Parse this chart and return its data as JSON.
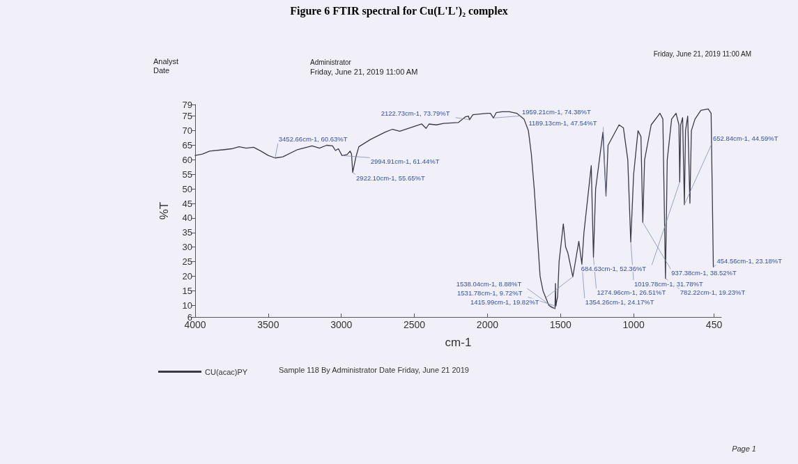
{
  "chart_data": {
    "type": "line",
    "title": "Figure 6 FTIR spectral for Cu(L'L')₂ complex",
    "xlabel": "cm-1",
    "ylabel": "%T",
    "xlim": [
      4000,
      400
    ],
    "xticks": [
      4000,
      3500,
      3000,
      2500,
      2000,
      1500,
      1000,
      450
    ],
    "ylim": [
      6,
      79
    ],
    "yticks": [
      6,
      10,
      15,
      20,
      25,
      30,
      35,
      40,
      45,
      50,
      55,
      60,
      65,
      70,
      75,
      79
    ],
    "grid": false,
    "legend": "bottom left",
    "marker": "none",
    "line_style": "solid",
    "series": [
      {
        "name": "CU(acac)PY",
        "color": "#3a3a44",
        "x": [
          4000,
          3950,
          3900,
          3800,
          3750,
          3700,
          3650,
          3600,
          3550,
          3500,
          3452.66,
          3400,
          3300,
          3200,
          3150,
          3100,
          3060,
          3040,
          3020,
          2994.91,
          2960,
          2940,
          2930,
          2922.1,
          2900,
          2880,
          2800,
          2700,
          2650,
          2600,
          2500,
          2450,
          2420,
          2400,
          2350,
          2300,
          2200,
          2150,
          2130,
          2122.73,
          2100,
          2000,
          1980,
          1959.21,
          1940,
          1900,
          1850,
          1800,
          1750,
          1720,
          1700,
          1680,
          1660,
          1640,
          1620,
          1580,
          1560,
          1545,
          1538.04,
          1535,
          1533,
          1531.78,
          1528,
          1520,
          1510,
          1481,
          1465,
          1450,
          1415.99,
          1375,
          1354.26,
          1340,
          1290,
          1274.96,
          1260,
          1210,
          1189.13,
          1175,
          1100,
          1070,
          1040,
          1019.78,
          1000,
          970,
          950,
          937.38,
          925,
          880,
          820,
          800,
          782.22,
          770,
          740,
          710,
          690,
          684.63,
          678,
          665,
          652.84,
          645,
          630,
          615,
          605,
          580,
          540,
          490,
          470,
          454.56
        ],
        "values": [
          61.5,
          62,
          63,
          63.5,
          63.8,
          64.5,
          64,
          64.3,
          63,
          61.5,
          60.63,
          61,
          63.5,
          64.8,
          64,
          65,
          64.8,
          63.2,
          63.8,
          61.44,
          61.8,
          63,
          62,
          55.65,
          61,
          64.5,
          67,
          69.5,
          70.5,
          69.8,
          71.5,
          72.3,
          70.8,
          72.3,
          72,
          72.5,
          72.8,
          74.8,
          75,
          73.79,
          75.5,
          76,
          76,
          74.38,
          76.2,
          76.5,
          76.5,
          76,
          74,
          70,
          62,
          50,
          35,
          20,
          15,
          10,
          9.3,
          9,
          8.88,
          17.5,
          12,
          9.72,
          11,
          13,
          25,
          38,
          30,
          28,
          19.82,
          32,
          24.17,
          35,
          58,
          26.51,
          50,
          69.5,
          47.54,
          65,
          72,
          71,
          60,
          31.78,
          55,
          70,
          68,
          38.52,
          60,
          72,
          76,
          74,
          19.23,
          60,
          74,
          76,
          72,
          52.36,
          72,
          74.5,
          44.59,
          70,
          75,
          45.1,
          70,
          74,
          77,
          77.5,
          76,
          23.18
        ]
      }
    ],
    "annotations": [
      "Analyst",
      "Date",
      "Administrator",
      "Friday, June 21, 2019 11:00 AM",
      "Friday, June 21, 2019 11:00 AM",
      "Sample 118 By Administrator Date Friday, June 21 2019",
      "Page 1",
      {
        "text": "3452.66cm-1, 60.63%T",
        "x": 3452.66,
        "y": 60.63
      },
      {
        "text": "2994.91cm-1, 61.44%T",
        "x": 2994.91,
        "y": 61.44
      },
      {
        "text": "2922.10cm-1, 55.65%T",
        "x": 2922.1,
        "y": 55.65
      },
      {
        "text": "2122.73cm-1, 73.79%T",
        "x": 2122.73,
        "y": 73.79
      },
      {
        "text": "1959.21cm-1, 74.38%T",
        "x": 1959.21,
        "y": 74.38
      },
      {
        "text": "1189.13cm-1, 47.54%T",
        "x": 1189.13,
        "y": 47.54
      },
      {
        "text": "684.63cm-1, 52.36%T",
        "x": 684.63,
        "y": 52.36
      },
      {
        "text": "652.84cm-1, 44.59%T",
        "x": 652.84,
        "y": 44.59
      },
      {
        "text": "937.38cm-1, 38.52%T",
        "x": 937.38,
        "y": 38.52
      },
      {
        "text": "1019.78cm-1, 31.78%T",
        "x": 1019.78,
        "y": 31.78
      },
      {
        "text": "1274.96cm-1, 26.51%T",
        "x": 1274.96,
        "y": 26.51
      },
      {
        "text": "1354.26cm-1, 24.17%T",
        "x": 1354.26,
        "y": 24.17
      },
      {
        "text": "454.56cm-1, 23.18%T",
        "x": 454.56,
        "y": 23.18
      },
      {
        "text": "1415.99cm-1, 19.82%T",
        "x": 1415.99,
        "y": 19.82
      },
      {
        "text": "782.22cm-1, 19.23%T",
        "x": 782.22,
        "y": 19.23
      },
      {
        "text": "1531.78cm-1, 9.72%T",
        "x": 1531.78,
        "y": 9.72
      },
      {
        "text": "1538.04cm-1, 8.88%T",
        "x": 1538.04,
        "y": 8.88
      }
    ]
  }
}
